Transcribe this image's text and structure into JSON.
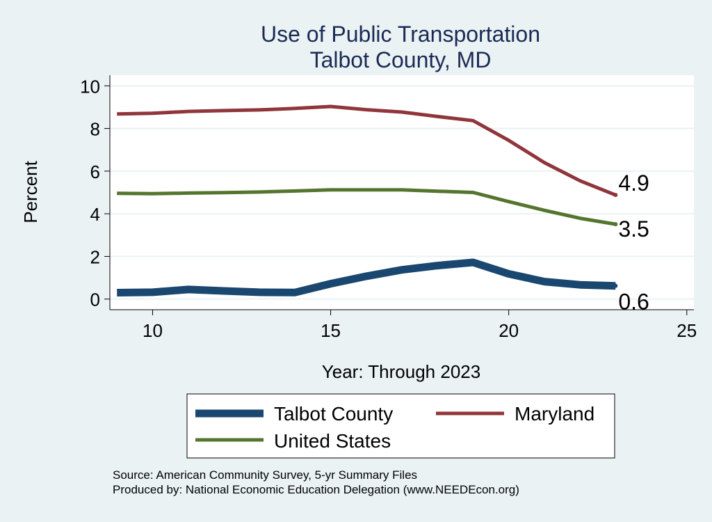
{
  "chart_data": {
    "type": "line",
    "title": "Use of Public Transportation",
    "subtitle": "Talbot County, MD",
    "xlabel": "Year: Through 2023",
    "ylabel": "Percent",
    "xlim": [
      8.8,
      25.2
    ],
    "ylim": [
      -0.5,
      10.5
    ],
    "xticks": [
      10,
      15,
      20,
      25
    ],
    "yticks": [
      0,
      2,
      4,
      6,
      8,
      10
    ],
    "grid": true,
    "legend_position": "bottom",
    "series": [
      {
        "name": "Talbot County",
        "color": "#1a476f",
        "width": 11,
        "x": [
          9,
          10,
          11,
          12,
          13,
          14,
          15,
          16,
          17,
          18,
          19,
          20,
          21,
          22,
          23
        ],
        "y": [
          0.3,
          0.32,
          0.45,
          0.38,
          0.32,
          0.31,
          0.72,
          1.07,
          1.37,
          1.57,
          1.72,
          1.18,
          0.82,
          0.67,
          0.62
        ],
        "end_label": "0.6"
      },
      {
        "name": "Maryland",
        "color": "#90353b",
        "width": 5,
        "x": [
          9,
          10,
          11,
          12,
          13,
          14,
          15,
          16,
          17,
          18,
          19,
          20,
          21,
          22,
          23
        ],
        "y": [
          8.68,
          8.71,
          8.8,
          8.84,
          8.87,
          8.94,
          9.03,
          8.88,
          8.77,
          8.56,
          8.37,
          7.44,
          6.4,
          5.55,
          4.88
        ],
        "end_label": "4.9"
      },
      {
        "name": "United States",
        "color": "#55752f",
        "width": 5,
        "x": [
          9,
          10,
          11,
          12,
          13,
          14,
          15,
          16,
          17,
          18,
          19,
          20,
          21,
          22,
          23
        ],
        "y": [
          4.96,
          4.94,
          4.97,
          4.99,
          5.02,
          5.07,
          5.12,
          5.12,
          5.12,
          5.06,
          5.0,
          4.57,
          4.16,
          3.79,
          3.51
        ],
        "end_label": "3.5"
      }
    ],
    "source_lines": [
      "Source: American Community Survey, 5-yr Summary Files",
      "Produced by: National Economic Education Delegation (www.NEEDEcon.org)"
    ]
  }
}
